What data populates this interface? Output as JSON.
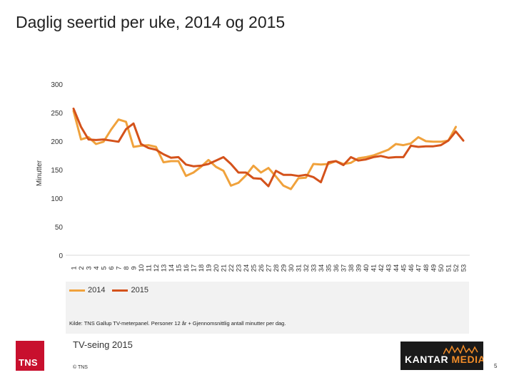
{
  "page": {
    "title": "Daglig seertid per uke, 2014 og 2015",
    "source_note": "Kilde: TNS Gallup TV-meterpanel. Personer 12 år + Gjennomsnittlig antall minutter per dag.",
    "footer_title": "TV-seing 2015",
    "copyright": "© TNS",
    "page_number": "5",
    "logo_tns_text": "TNS",
    "logo_kantar_word1": "KANTAR",
    "logo_kantar_word2": "MEDIA"
  },
  "chart_data": {
    "type": "line",
    "title": "",
    "xlabel": "",
    "ylabel": "Minutter",
    "ylim": [
      0,
      300
    ],
    "yticks": [
      0,
      50,
      100,
      150,
      200,
      250,
      300
    ],
    "grid": false,
    "legend_position": "bottom-left",
    "categories": [
      "1",
      "2",
      "3",
      "4",
      "5",
      "6",
      "7",
      "8",
      "9",
      "10",
      "11",
      "12",
      "13",
      "14",
      "15",
      "16",
      "17",
      "18",
      "19",
      "20",
      "21",
      "22",
      "23",
      "24",
      "25",
      "26",
      "27",
      "28",
      "29",
      "30",
      "31",
      "32",
      "33",
      "34",
      "35",
      "36",
      "37",
      "38",
      "39",
      "40",
      "41",
      "42",
      "43",
      "44",
      "45",
      "46",
      "47",
      "48",
      "49",
      "50",
      "51",
      "52",
      "53"
    ],
    "series": [
      {
        "name": "2014",
        "color": "#f0a23c",
        "values": [
          253,
          203,
          207,
          195,
          199,
          220,
          238,
          234,
          190,
          192,
          193,
          190,
          163,
          165,
          165,
          139,
          145,
          155,
          167,
          155,
          148,
          122,
          127,
          140,
          157,
          145,
          153,
          138,
          122,
          116,
          135,
          136,
          160,
          159,
          160,
          165,
          160,
          162,
          170,
          172,
          175,
          180,
          185,
          195,
          193,
          196,
          207,
          200,
          199,
          199,
          201,
          225,
          null
        ]
      },
      {
        "name": "2015",
        "color": "#d4521b",
        "values": [
          257,
          225,
          203,
          202,
          203,
          201,
          199,
          221,
          231,
          195,
          188,
          185,
          177,
          171,
          172,
          159,
          156,
          157,
          160,
          166,
          172,
          160,
          145,
          145,
          135,
          134,
          121,
          148,
          141,
          141,
          139,
          141,
          137,
          128,
          163,
          165,
          158,
          172,
          166,
          168,
          172,
          174,
          171,
          172,
          172,
          192,
          190,
          191,
          191,
          193,
          201,
          217,
          201
        ]
      }
    ]
  }
}
